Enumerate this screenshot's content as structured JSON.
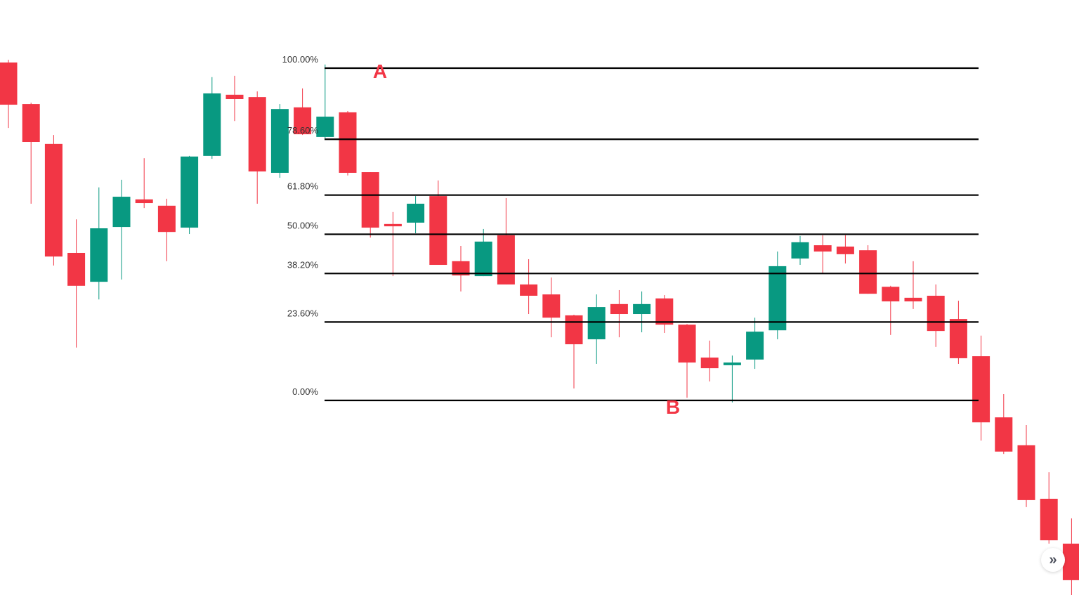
{
  "chart_data": {
    "type": "candlestick",
    "title": "",
    "colors": {
      "up": "#089981",
      "down": "#f23645",
      "fib_line": "#000000",
      "point_label": "#f23645",
      "level_label": "#333333"
    },
    "y_units": "fibonacci retracement percent (0% = B, 100% = A)",
    "fib_levels": [
      {
        "level": 100.0,
        "label": "100.00%"
      },
      {
        "level": 78.6,
        "label": "78.60%"
      },
      {
        "level": 61.8,
        "label": "61.80%"
      },
      {
        "level": 50.0,
        "label": "50.00%"
      },
      {
        "level": 38.2,
        "label": "38.20%"
      },
      {
        "level": 23.6,
        "label": "23.60%"
      },
      {
        "level": 0.0,
        "label": "0.00%"
      }
    ],
    "points": [
      {
        "label": "A",
        "candle": 15,
        "level": 100.0
      },
      {
        "label": "B",
        "candle": 31,
        "level": 0.0
      }
    ],
    "candles": [
      [
        101.7,
        102.5,
        82.0,
        89.0
      ],
      [
        89.2,
        89.6,
        59.2,
        77.8
      ],
      [
        77.2,
        79.9,
        40.6,
        43.3
      ],
      [
        44.4,
        54.5,
        15.9,
        34.5
      ],
      [
        35.7,
        64.1,
        30.4,
        51.8
      ],
      [
        52.2,
        66.4,
        36.4,
        61.3
      ],
      [
        60.5,
        72.9,
        57.9,
        59.4
      ],
      [
        58.6,
        60.7,
        41.9,
        50.7
      ],
      [
        52.0,
        73.6,
        50.1,
        73.4
      ],
      [
        73.6,
        97.3,
        72.7,
        92.4
      ],
      [
        92.0,
        97.7,
        84.1,
        90.7
      ],
      [
        91.3,
        93.0,
        59.2,
        68.9
      ],
      [
        68.5,
        89.2,
        67.0,
        87.7
      ],
      [
        88.2,
        93.9,
        79.9,
        80.1
      ],
      [
        79.3,
        101.1,
        78.6,
        85.4
      ],
      [
        86.7,
        87.1,
        67.7,
        68.5
      ],
      [
        68.7,
        68.7,
        49.0,
        52.0
      ],
      [
        53.1,
        56.7,
        37.4,
        52.4
      ],
      [
        53.5,
        61.5,
        50.3,
        59.2
      ],
      [
        61.5,
        66.2,
        40.8,
        40.8
      ],
      [
        41.9,
        46.5,
        32.8,
        37.6
      ],
      [
        37.4,
        51.6,
        37.4,
        47.8
      ],
      [
        49.7,
        60.9,
        34.9,
        34.9
      ],
      [
        34.9,
        42.5,
        26.0,
        31.5
      ],
      [
        31.9,
        37.0,
        19.0,
        24.9
      ],
      [
        25.6,
        25.8,
        3.6,
        16.9
      ],
      [
        18.4,
        31.9,
        11.0,
        28.1
      ],
      [
        29.0,
        33.2,
        19.0,
        26.0
      ],
      [
        26.0,
        32.8,
        20.5,
        29.0
      ],
      [
        30.7,
        31.7,
        20.3,
        22.8
      ],
      [
        22.8,
        23.0,
        0.8,
        11.4
      ],
      [
        12.9,
        18.0,
        5.7,
        9.7
      ],
      [
        10.6,
        13.5,
        -0.6,
        11.4
      ],
      [
        12.3,
        24.9,
        9.5,
        20.7
      ],
      [
        21.1,
        44.8,
        18.4,
        40.4
      ],
      [
        42.7,
        49.5,
        40.8,
        47.6
      ],
      [
        46.7,
        49.7,
        38.1,
        44.8
      ],
      [
        46.3,
        49.7,
        41.2,
        44.0
      ],
      [
        45.2,
        46.7,
        32.1,
        32.1
      ],
      [
        34.2,
        34.5,
        19.7,
        29.8
      ],
      [
        30.9,
        41.9,
        27.5,
        29.8
      ],
      [
        31.5,
        34.9,
        16.1,
        20.9
      ],
      [
        24.5,
        30.0,
        11.0,
        12.7
      ],
      [
        13.3,
        19.5,
        -12.1,
        -6.6
      ],
      [
        -5.1,
        1.9,
        -16.1,
        -15.4
      ],
      [
        -13.5,
        -7.4,
        -32.1,
        -30.0
      ],
      [
        -29.6,
        -21.6,
        -43.1,
        -42.1
      ],
      [
        -43.1,
        -35.5,
        -58.6,
        -54.1
      ]
    ],
    "candle_format": [
      "open",
      "high",
      "low",
      "close"
    ],
    "grid": false,
    "legend": "none"
  },
  "controls": {
    "scroll_right_icon": "double-chevron-right-icon",
    "scroll_right_glyph": "»"
  }
}
